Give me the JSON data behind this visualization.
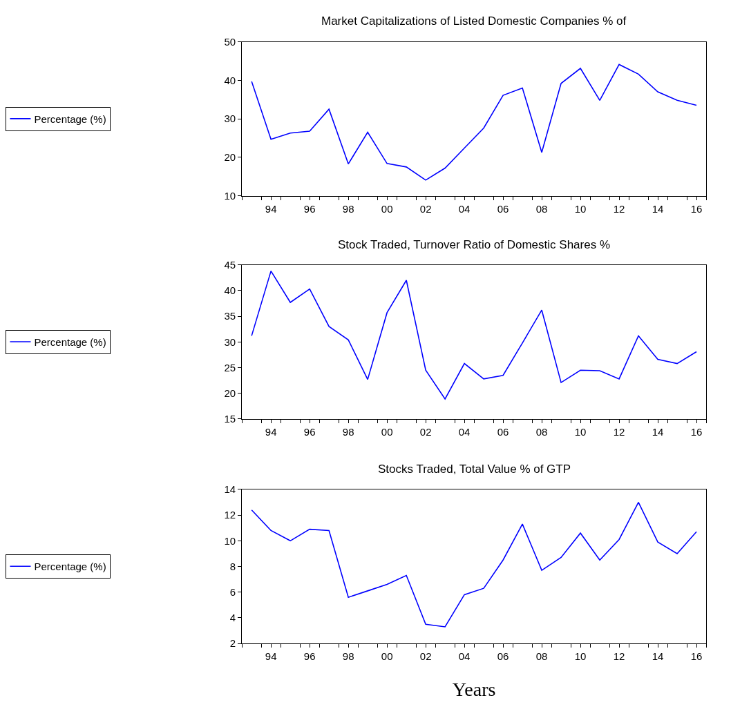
{
  "chart_data": [
    {
      "type": "line",
      "title": "Market Capitalizations of Listed Domestic Companies % of",
      "x": [
        1993,
        1994,
        1995,
        1996,
        1997,
        1998,
        1999,
        2000,
        2001,
        2002,
        2003,
        2004,
        2005,
        2006,
        2007,
        2008,
        2009,
        2010,
        2011,
        2012,
        2013,
        2014,
        2015,
        2016
      ],
      "series": [
        {
          "name": "Percentage (%)",
          "color": "#0000ff",
          "values": [
            39.7,
            24.7,
            26.3,
            26.8,
            32.5,
            18.3,
            26.5,
            18.4,
            17.5,
            14.1,
            17.2,
            22.4,
            27.6,
            36.1,
            38.0,
            21.3,
            39.2,
            43.1,
            34.8,
            44.1,
            41.6,
            37.0,
            34.8,
            33.5
          ]
        }
      ],
      "xlim": [
        1992.5,
        2016.5
      ],
      "xticks": [
        {
          "value": 1992.5,
          "label": null
        },
        {
          "value": 1993.5,
          "label": null
        },
        {
          "value": 1994,
          "label": "94"
        },
        {
          "value": 1994.5,
          "label": null
        },
        {
          "value": 1995.5,
          "label": null
        },
        {
          "value": 1996,
          "label": "96"
        },
        {
          "value": 1996.5,
          "label": null
        },
        {
          "value": 1997.5,
          "label": null
        },
        {
          "value": 1998,
          "label": "98"
        },
        {
          "value": 1998.5,
          "label": null
        },
        {
          "value": 1999.5,
          "label": null
        },
        {
          "value": 2000,
          "label": "00"
        },
        {
          "value": 2000.5,
          "label": null
        },
        {
          "value": 2001.5,
          "label": null
        },
        {
          "value": 2002,
          "label": "02"
        },
        {
          "value": 2002.5,
          "label": null
        },
        {
          "value": 2003.5,
          "label": null
        },
        {
          "value": 2004,
          "label": "04"
        },
        {
          "value": 2004.5,
          "label": null
        },
        {
          "value": 2005.5,
          "label": null
        },
        {
          "value": 2006,
          "label": "06"
        },
        {
          "value": 2006.5,
          "label": null
        },
        {
          "value": 2007.5,
          "label": null
        },
        {
          "value": 2008,
          "label": "08"
        },
        {
          "value": 2008.5,
          "label": null
        },
        {
          "value": 2009.5,
          "label": null
        },
        {
          "value": 2010,
          "label": "10"
        },
        {
          "value": 2010.5,
          "label": null
        },
        {
          "value": 2011.5,
          "label": null
        },
        {
          "value": 2012,
          "label": "12"
        },
        {
          "value": 2012.5,
          "label": null
        },
        {
          "value": 2013.5,
          "label": null
        },
        {
          "value": 2014,
          "label": "14"
        },
        {
          "value": 2014.5,
          "label": null
        },
        {
          "value": 2015.5,
          "label": null
        },
        {
          "value": 2016,
          "label": "16"
        },
        {
          "value": 2016.5,
          "label": null
        }
      ],
      "ylim": [
        10,
        50
      ],
      "yticks": [
        10,
        20,
        30,
        40,
        50
      ],
      "legend": "left"
    },
    {
      "type": "line",
      "title": "Stock Traded, Turnover Ratio of Domestic Shares %",
      "x": [
        1993,
        1994,
        1995,
        1996,
        1997,
        1998,
        1999,
        2000,
        2001,
        2002,
        2003,
        2004,
        2005,
        2006,
        2007,
        2008,
        2009,
        2010,
        2011,
        2012,
        2013,
        2014,
        2015,
        2016
      ],
      "series": [
        {
          "name": "Percentage (%)",
          "color": "#0000ff",
          "values": [
            31.2,
            43.8,
            37.7,
            40.3,
            33.0,
            30.4,
            22.7,
            35.7,
            42.0,
            24.5,
            18.9,
            25.8,
            22.8,
            23.5,
            29.8,
            36.2,
            22.1,
            24.5,
            24.4,
            22.8,
            31.2,
            26.6,
            25.8,
            28.1
          ]
        }
      ],
      "xlim": [
        1992.5,
        2016.5
      ],
      "xticks": [
        {
          "value": 1992.5,
          "label": null
        },
        {
          "value": 1993.5,
          "label": null
        },
        {
          "value": 1994,
          "label": "94"
        },
        {
          "value": 1994.5,
          "label": null
        },
        {
          "value": 1995.5,
          "label": null
        },
        {
          "value": 1996,
          "label": "96"
        },
        {
          "value": 1996.5,
          "label": null
        },
        {
          "value": 1997.5,
          "label": null
        },
        {
          "value": 1998,
          "label": "98"
        },
        {
          "value": 1998.5,
          "label": null
        },
        {
          "value": 1999.5,
          "label": null
        },
        {
          "value": 2000,
          "label": "00"
        },
        {
          "value": 2000.5,
          "label": null
        },
        {
          "value": 2001.5,
          "label": null
        },
        {
          "value": 2002,
          "label": "02"
        },
        {
          "value": 2002.5,
          "label": null
        },
        {
          "value": 2003.5,
          "label": null
        },
        {
          "value": 2004,
          "label": "04"
        },
        {
          "value": 2004.5,
          "label": null
        },
        {
          "value": 2005.5,
          "label": null
        },
        {
          "value": 2006,
          "label": "06"
        },
        {
          "value": 2006.5,
          "label": null
        },
        {
          "value": 2007.5,
          "label": null
        },
        {
          "value": 2008,
          "label": "08"
        },
        {
          "value": 2008.5,
          "label": null
        },
        {
          "value": 2009.5,
          "label": null
        },
        {
          "value": 2010,
          "label": "10"
        },
        {
          "value": 2010.5,
          "label": null
        },
        {
          "value": 2011.5,
          "label": null
        },
        {
          "value": 2012,
          "label": "12"
        },
        {
          "value": 2012.5,
          "label": null
        },
        {
          "value": 2013.5,
          "label": null
        },
        {
          "value": 2014,
          "label": "14"
        },
        {
          "value": 2014.5,
          "label": null
        },
        {
          "value": 2015.5,
          "label": null
        },
        {
          "value": 2016,
          "label": "16"
        },
        {
          "value": 2016.5,
          "label": null
        }
      ],
      "ylim": [
        15,
        45
      ],
      "yticks": [
        15,
        20,
        25,
        30,
        35,
        40,
        45
      ],
      "legend": "left"
    },
    {
      "type": "line",
      "title": "Stocks Traded, Total Value % of GTP",
      "xlabel": "Years",
      "x": [
        1993,
        1994,
        1995,
        1996,
        1997,
        1998,
        1999,
        2000,
        2001,
        2002,
        2003,
        2004,
        2005,
        2006,
        2007,
        2008,
        2009,
        2010,
        2011,
        2012,
        2013,
        2014,
        2015,
        2016
      ],
      "series": [
        {
          "name": "Percentage (%)",
          "color": "#0000ff",
          "values": [
            12.4,
            10.8,
            10.0,
            10.9,
            10.8,
            5.6,
            6.1,
            6.6,
            7.3,
            3.5,
            3.3,
            5.8,
            6.3,
            8.5,
            11.3,
            7.7,
            8.7,
            10.6,
            8.5,
            10.1,
            13.0,
            9.9,
            9.0,
            10.7
          ]
        }
      ],
      "xlim": [
        1992.5,
        2016.5
      ],
      "xticks": [
        {
          "value": 1992.5,
          "label": null
        },
        {
          "value": 1993.5,
          "label": null
        },
        {
          "value": 1994,
          "label": "94"
        },
        {
          "value": 1994.5,
          "label": null
        },
        {
          "value": 1995.5,
          "label": null
        },
        {
          "value": 1996,
          "label": "96"
        },
        {
          "value": 1996.5,
          "label": null
        },
        {
          "value": 1997.5,
          "label": null
        },
        {
          "value": 1998,
          "label": "98"
        },
        {
          "value": 1998.5,
          "label": null
        },
        {
          "value": 1999.5,
          "label": null
        },
        {
          "value": 2000,
          "label": "00"
        },
        {
          "value": 2000.5,
          "label": null
        },
        {
          "value": 2001.5,
          "label": null
        },
        {
          "value": 2002,
          "label": "02"
        },
        {
          "value": 2002.5,
          "label": null
        },
        {
          "value": 2003.5,
          "label": null
        },
        {
          "value": 2004,
          "label": "04"
        },
        {
          "value": 2004.5,
          "label": null
        },
        {
          "value": 2005.5,
          "label": null
        },
        {
          "value": 2006,
          "label": "06"
        },
        {
          "value": 2006.5,
          "label": null
        },
        {
          "value": 2007.5,
          "label": null
        },
        {
          "value": 2008,
          "label": "08"
        },
        {
          "value": 2008.5,
          "label": null
        },
        {
          "value": 2009.5,
          "label": null
        },
        {
          "value": 2010,
          "label": "10"
        },
        {
          "value": 2010.5,
          "label": null
        },
        {
          "value": 2011.5,
          "label": null
        },
        {
          "value": 2012,
          "label": "12"
        },
        {
          "value": 2012.5,
          "label": null
        },
        {
          "value": 2013.5,
          "label": null
        },
        {
          "value": 2014,
          "label": "14"
        },
        {
          "value": 2014.5,
          "label": null
        },
        {
          "value": 2015.5,
          "label": null
        },
        {
          "value": 2016,
          "label": "16"
        },
        {
          "value": 2016.5,
          "label": null
        }
      ],
      "ylim": [
        2,
        14
      ],
      "yticks": [
        2,
        4,
        6,
        8,
        10,
        12,
        14
      ],
      "legend": "left"
    }
  ]
}
